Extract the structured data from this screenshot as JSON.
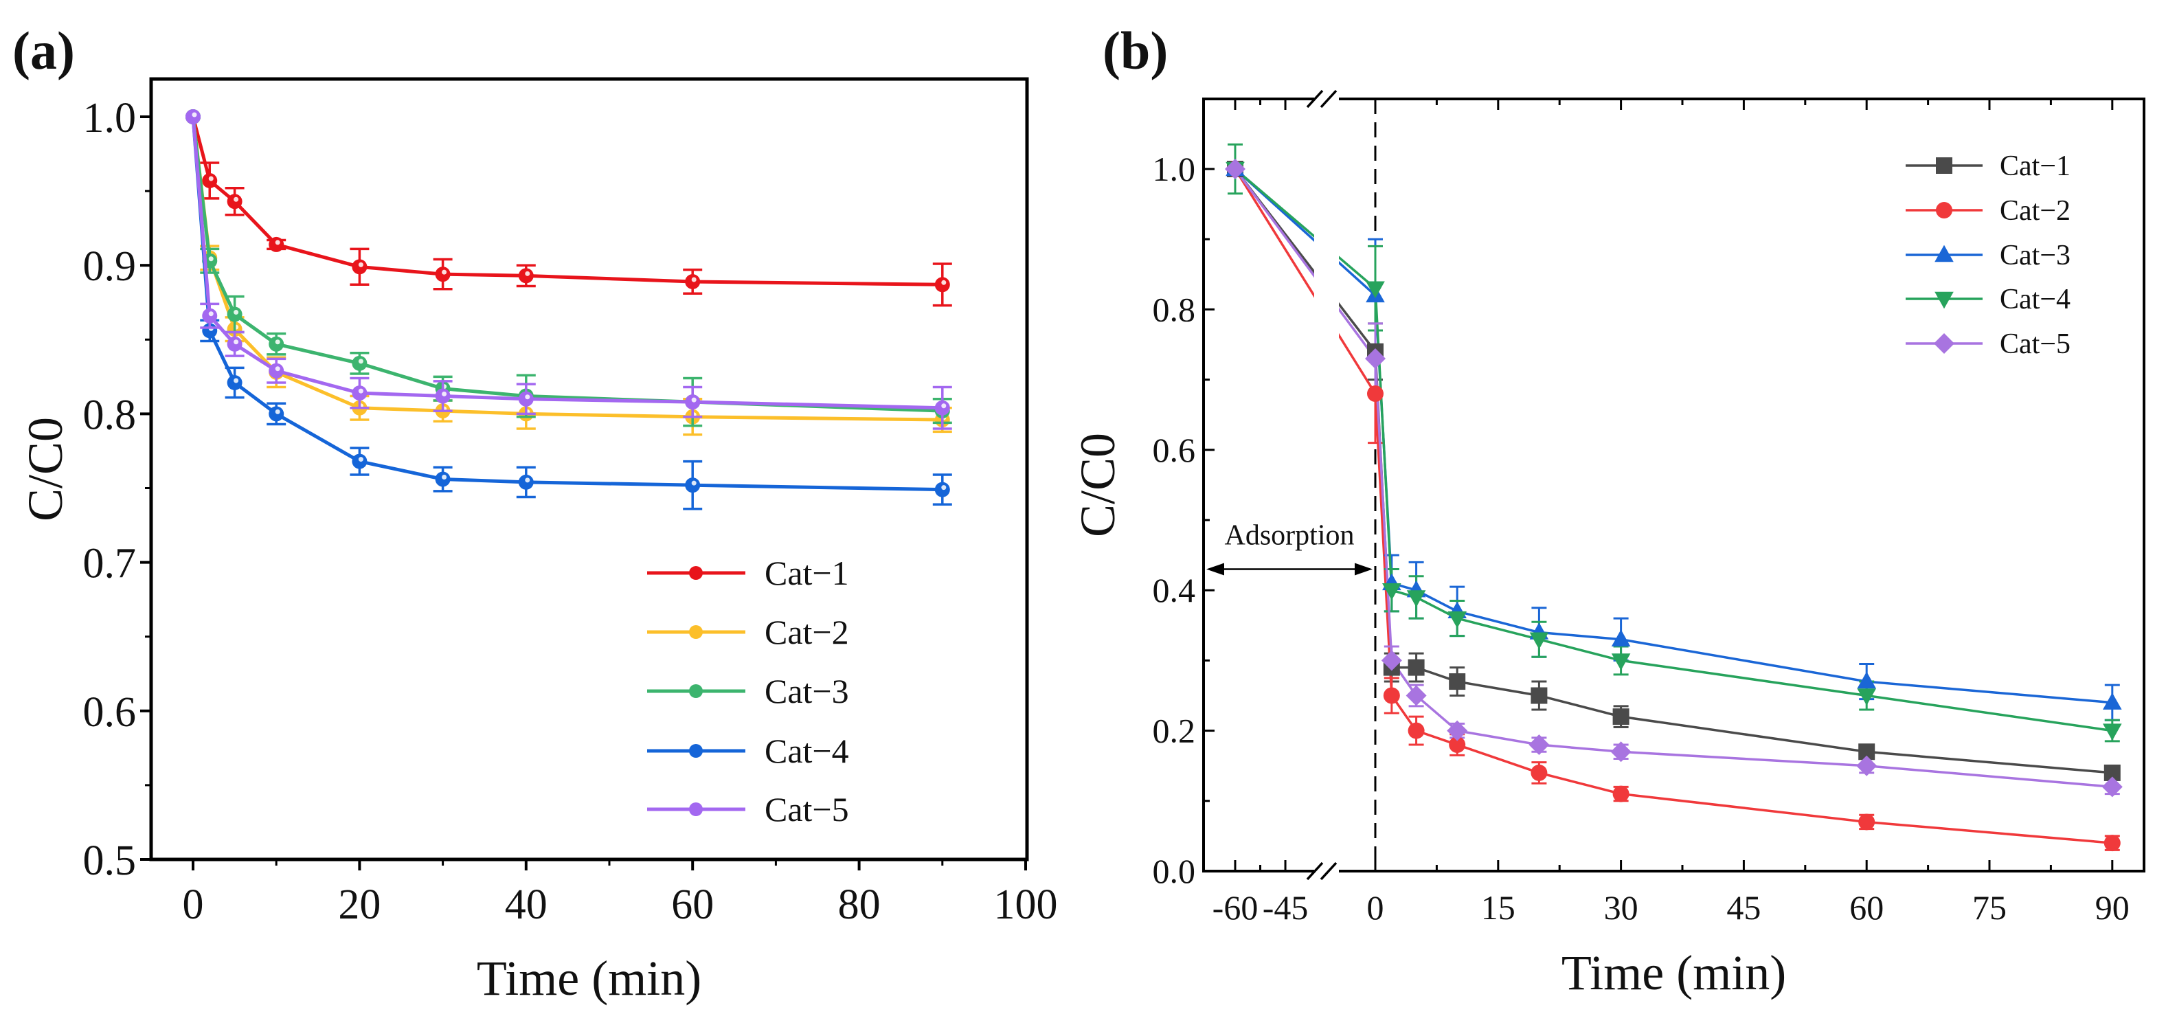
{
  "chart_data": [
    {
      "panel_label": "(a)",
      "type": "line",
      "xlabel": "Time (min)",
      "ylabel": "C/C0",
      "xlim": [
        -5,
        100
      ],
      "ylim": [
        0.5,
        1.025
      ],
      "xticks": [
        0,
        20,
        40,
        60,
        80,
        100
      ],
      "yticks": [
        "0.5",
        "0.6",
        "0.7",
        "0.8",
        "0.9",
        "1.0"
      ],
      "grid": false,
      "legend_position": "bottom-right",
      "x": [
        0,
        2,
        5,
        10,
        20,
        30,
        40,
        60,
        90
      ],
      "series": [
        {
          "name": "Cat−1",
          "color": "#e8141b",
          "marker": "circle",
          "values": [
            1.0,
            0.957,
            0.943,
            0.914,
            0.899,
            0.894,
            0.893,
            0.889,
            0.887
          ],
          "errors": [
            0,
            0.012,
            0.009,
            0.003,
            0.012,
            0.01,
            0.007,
            0.008,
            0.014
          ]
        },
        {
          "name": "Cat−2",
          "color": "#fcbf2a",
          "marker": "circle",
          "values": [
            1.0,
            0.905,
            0.857,
            0.828,
            0.804,
            0.802,
            0.8,
            0.798,
            0.796
          ],
          "errors": [
            0,
            0.008,
            0.008,
            0.01,
            0.008,
            0.007,
            0.01,
            0.012,
            0.008
          ]
        },
        {
          "name": "Cat−3",
          "color": "#3cb46e",
          "marker": "circle",
          "values": [
            1.0,
            0.903,
            0.867,
            0.847,
            0.834,
            0.817,
            0.812,
            0.808,
            0.802
          ],
          "errors": [
            0,
            0.008,
            0.012,
            0.007,
            0.007,
            0.008,
            0.014,
            0.016,
            0.008
          ]
        },
        {
          "name": "Cat−4",
          "color": "#1565d8",
          "marker": "circle",
          "values": [
            1.0,
            0.856,
            0.821,
            0.8,
            0.768,
            0.756,
            0.754,
            0.752,
            0.749
          ],
          "errors": [
            0,
            0.007,
            0.01,
            0.007,
            0.009,
            0.008,
            0.01,
            0.016,
            0.01
          ]
        },
        {
          "name": "Cat−5",
          "color": "#a368f0",
          "marker": "circle",
          "values": [
            1.0,
            0.866,
            0.847,
            0.829,
            0.814,
            0.812,
            0.81,
            0.808,
            0.804
          ],
          "errors": [
            0,
            0.008,
            0.008,
            0.008,
            0.01,
            0.01,
            0.01,
            0.01,
            0.014
          ]
        }
      ]
    },
    {
      "panel_label": "(b)",
      "type": "line",
      "xlabel": "Time (min)",
      "ylabel": "C/C0",
      "xlim": [
        -69,
        94
      ],
      "x_axis_break": [
        -40,
        -5
      ],
      "ylim": [
        0,
        1.1
      ],
      "xticks": [
        -60,
        -45,
        0,
        15,
        30,
        45,
        60,
        75,
        90
      ],
      "xtick_labels": [
        "-60",
        "-45",
        "0",
        "15",
        "30",
        "45",
        "60",
        "75",
        "90"
      ],
      "yticks": [
        "0.0",
        "0.2",
        "0.4",
        "0.6",
        "0.8",
        "1.0"
      ],
      "grid": false,
      "legend_position": "top-right",
      "annotation": {
        "text": "Adsorption",
        "x_from": -69,
        "x_to": 0,
        "y": 0.43
      },
      "x": [
        -60,
        0,
        2,
        5,
        10,
        20,
        30,
        60,
        90
      ],
      "series": [
        {
          "name": "Cat−1",
          "color": "#4a4a4a",
          "marker": "square",
          "values": [
            1.0,
            0.74,
            0.29,
            0.29,
            0.27,
            0.25,
            0.22,
            0.17,
            0.14
          ],
          "errors": [
            0.01,
            0.04,
            0.02,
            0.02,
            0.02,
            0.02,
            0.015,
            0.01,
            0.01
          ]
        },
        {
          "name": "Cat−2",
          "color": "#f0393b",
          "marker": "circle",
          "values": [
            1.0,
            0.68,
            0.25,
            0.2,
            0.18,
            0.14,
            0.11,
            0.07,
            0.04
          ],
          "errors": [
            0.01,
            0.07,
            0.025,
            0.02,
            0.015,
            0.015,
            0.01,
            0.01,
            0.01
          ]
        },
        {
          "name": "Cat−3",
          "color": "#1a66d6",
          "marker": "triangle-up",
          "values": [
            1.0,
            0.82,
            0.41,
            0.4,
            0.37,
            0.34,
            0.33,
            0.27,
            0.24
          ],
          "errors": [
            0.01,
            0.08,
            0.04,
            0.04,
            0.035,
            0.035,
            0.03,
            0.025,
            0.025
          ]
        },
        {
          "name": "Cat−4",
          "color": "#27a35c",
          "marker": "triangle-down",
          "values": [
            1.0,
            0.83,
            0.4,
            0.39,
            0.36,
            0.33,
            0.3,
            0.25,
            0.2
          ],
          "errors": [
            0.035,
            0.06,
            0.03,
            0.03,
            0.025,
            0.025,
            0.02,
            0.02,
            0.015
          ]
        },
        {
          "name": "Cat−5",
          "color": "#a874e0",
          "marker": "diamond",
          "values": [
            1.0,
            0.73,
            0.3,
            0.25,
            0.2,
            0.18,
            0.17,
            0.15,
            0.12
          ],
          "errors": [
            0.01,
            0.05,
            0.02,
            0.015,
            0.01,
            0.01,
            0.01,
            0.01,
            0.01
          ]
        }
      ]
    }
  ]
}
